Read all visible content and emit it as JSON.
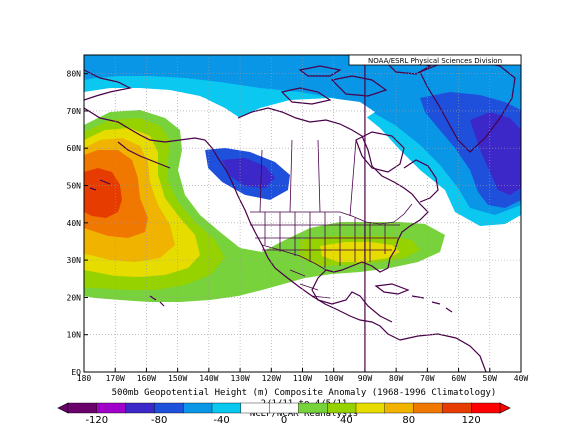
{
  "map": {
    "credit": "NOAA/ESRL Physical Sciences Division",
    "title": "500mb Geopotential Height (m) Composite Anomaly (1968-1996 Climatology)",
    "dates": "2/1/11 to 4/5/11",
    "source": "NCEP/NCAR Reanalysis",
    "lon_ticks": [
      "180",
      "170W",
      "160W",
      "150W",
      "140W",
      "130W",
      "120W",
      "110W",
      "100W",
      "90W",
      "80W",
      "70W",
      "60W",
      "50W",
      "40W"
    ],
    "lat_ticks": [
      "EQ",
      "10N",
      "20N",
      "30N",
      "40N",
      "50N",
      "60N",
      "70N",
      "80N"
    ]
  },
  "colorbar": {
    "labels": [
      "-120",
      "-80",
      "-40",
      "0",
      "40",
      "80",
      "120"
    ],
    "colors": [
      "#6a006a",
      "#a000c8",
      "#3c28c8",
      "#1e50dc",
      "#0a96e6",
      "#0ac8f0",
      "#ffffff",
      "#ffffff",
      "#78d23c",
      "#96d200",
      "#e6dc00",
      "#f0b400",
      "#f07800",
      "#e63c00",
      "#ff0000"
    ]
  },
  "anomaly_colors": {
    "red": "#e63c00",
    "orange": "#f07800",
    "gold": "#f0b400",
    "yellow": "#e6dc00",
    "yellowgreen": "#96d200",
    "green": "#78d23c",
    "cyan": "#0ac8f0",
    "lightblue": "#0a96e6",
    "blue": "#1e50dc",
    "darkblue": "#3c28c8",
    "boundary": "#4a004a"
  }
}
